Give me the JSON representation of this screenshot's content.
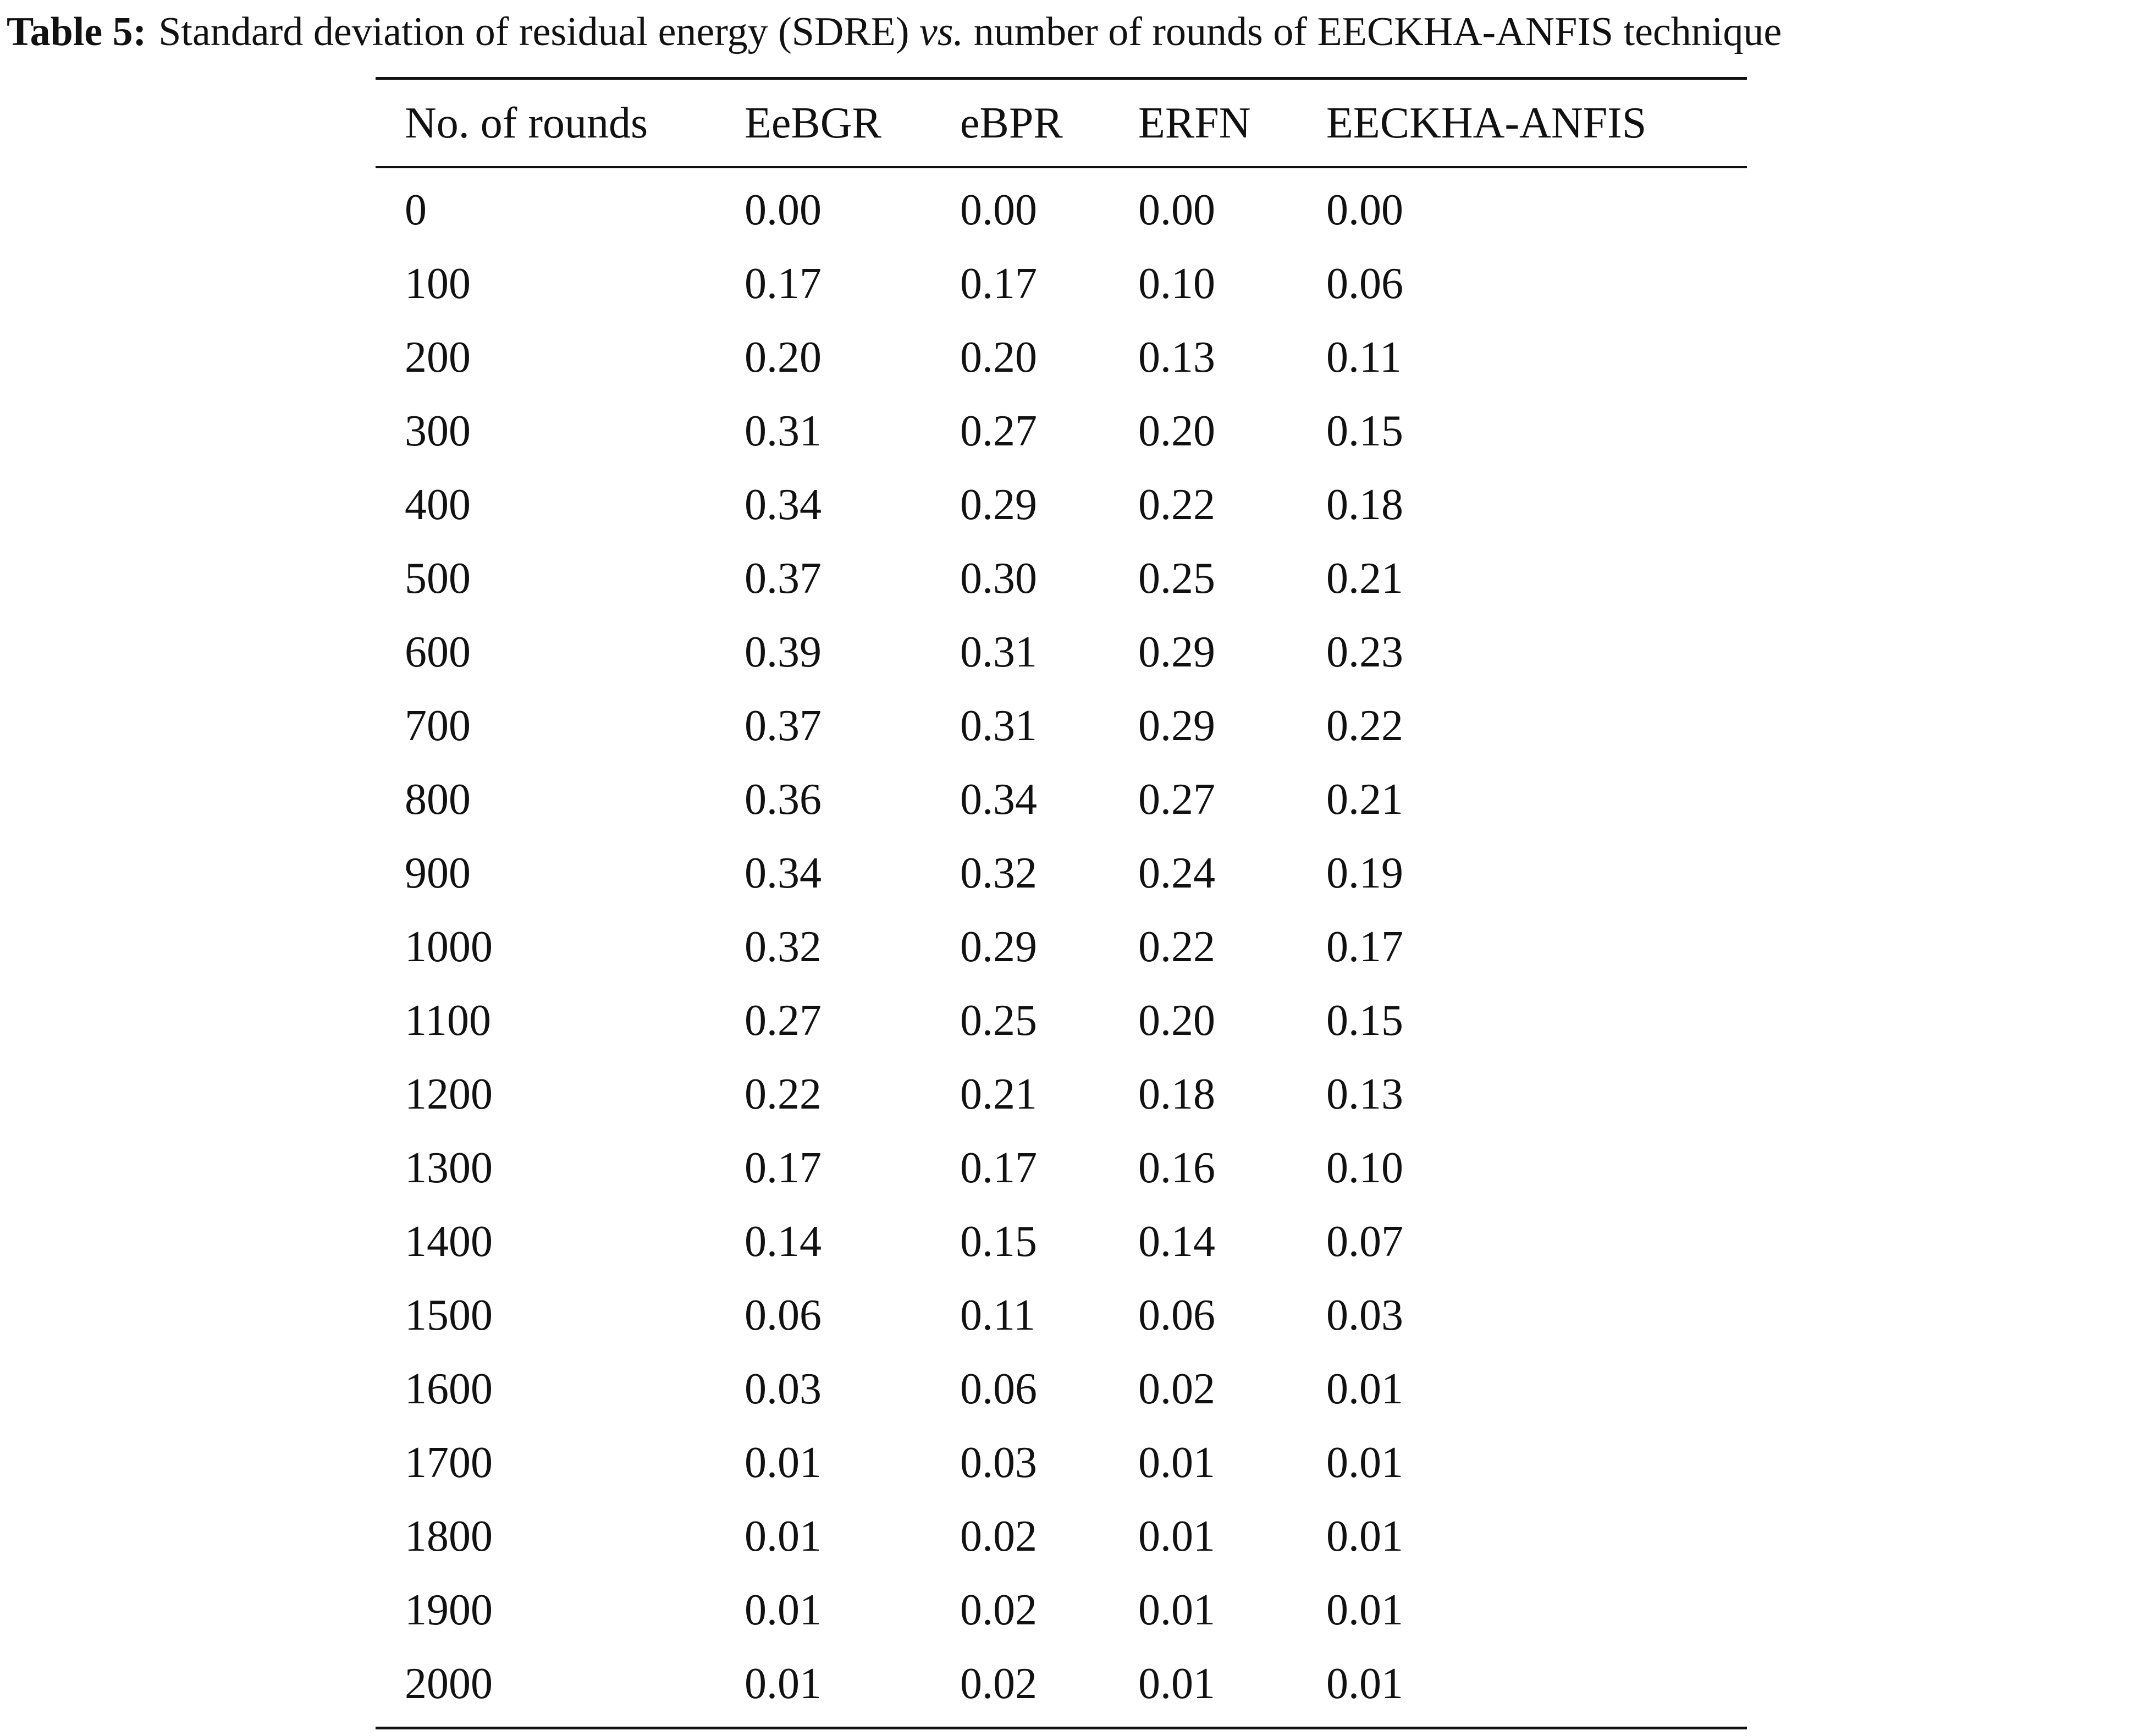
{
  "caption": {
    "label": "Table 5:",
    "text_before": "Standard deviation of residual energy (SDRE)",
    "italic": "vs.",
    "text_after": "number of rounds of EECKHA-ANFIS technique"
  },
  "table": {
    "header": [
      "No. of rounds",
      "EeBGR",
      "eBPR",
      "ERFN",
      "EECKHA-ANFIS"
    ],
    "rows": [
      [
        "0",
        "0.00",
        "0.00",
        "0.00",
        "0.00"
      ],
      [
        "100",
        "0.17",
        "0.17",
        "0.10",
        "0.06"
      ],
      [
        "200",
        "0.20",
        "0.20",
        "0.13",
        "0.11"
      ],
      [
        "300",
        "0.31",
        "0.27",
        "0.20",
        "0.15"
      ],
      [
        "400",
        "0.34",
        "0.29",
        "0.22",
        "0.18"
      ],
      [
        "500",
        "0.37",
        "0.30",
        "0.25",
        "0.21"
      ],
      [
        "600",
        "0.39",
        "0.31",
        "0.29",
        "0.23"
      ],
      [
        "700",
        "0.37",
        "0.31",
        "0.29",
        "0.22"
      ],
      [
        "800",
        "0.36",
        "0.34",
        "0.27",
        "0.21"
      ],
      [
        "900",
        "0.34",
        "0.32",
        "0.24",
        "0.19"
      ],
      [
        "1000",
        "0.32",
        "0.29",
        "0.22",
        "0.17"
      ],
      [
        "1100",
        "0.27",
        "0.25",
        "0.20",
        "0.15"
      ],
      [
        "1200",
        "0.22",
        "0.21",
        "0.18",
        "0.13"
      ],
      [
        "1300",
        "0.17",
        "0.17",
        "0.16",
        "0.10"
      ],
      [
        "1400",
        "0.14",
        "0.15",
        "0.14",
        "0.07"
      ],
      [
        "1500",
        "0.06",
        "0.11",
        "0.06",
        "0.03"
      ],
      [
        "1600",
        "0.03",
        "0.06",
        "0.02",
        "0.01"
      ],
      [
        "1700",
        "0.01",
        "0.03",
        "0.01",
        "0.01"
      ],
      [
        "1800",
        "0.01",
        "0.02",
        "0.01",
        "0.01"
      ],
      [
        "1900",
        "0.01",
        "0.02",
        "0.01",
        "0.01"
      ],
      [
        "2000",
        "0.01",
        "0.02",
        "0.01",
        "0.01"
      ]
    ]
  }
}
